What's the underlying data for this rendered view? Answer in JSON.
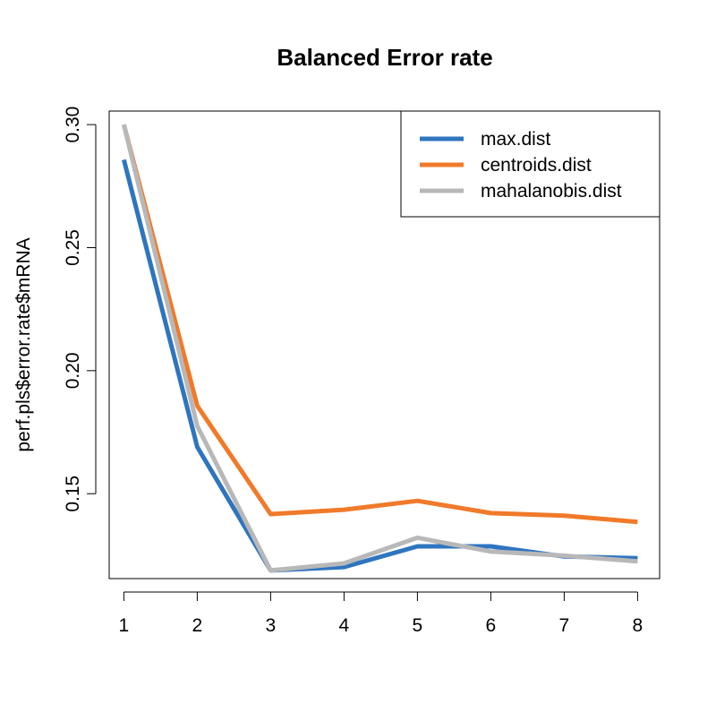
{
  "chart_data": {
    "type": "line",
    "title": "Balanced Error rate",
    "xlabel": "",
    "ylabel": "perf.pls$error.rate$mRNA",
    "x": [
      1,
      2,
      3,
      4,
      5,
      6,
      7,
      8
    ],
    "xticks": [
      "1",
      "2",
      "3",
      "4",
      "5",
      "6",
      "7",
      "8"
    ],
    "yticks": [
      "0.15",
      "0.20",
      "0.25",
      "0.30"
    ],
    "xlim": [
      0.8,
      8.3
    ],
    "ylim": [
      0.1155,
      0.3055
    ],
    "grid": false,
    "legend_position": "top-right",
    "series": [
      {
        "name": "max.dist",
        "color": "#2E75C0",
        "values": [
          0.2857,
          0.169,
          0.1188,
          0.1202,
          0.1286,
          0.1286,
          0.1245,
          0.1238
        ]
      },
      {
        "name": "centroids.dist",
        "color": "#F07A2A",
        "values": [
          0.3,
          0.1857,
          0.1417,
          0.1435,
          0.1471,
          0.1421,
          0.1411,
          0.1385
        ]
      },
      {
        "name": "mahalanobis.dist",
        "color": "#B8B8B8",
        "values": [
          0.3,
          0.1775,
          0.1188,
          0.1217,
          0.1321,
          0.1265,
          0.1248,
          0.1225
        ]
      }
    ]
  }
}
